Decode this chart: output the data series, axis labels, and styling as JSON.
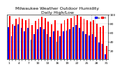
{
  "title": "Milwaukee Weather Outdoor Humidity",
  "subtitle": "Daily High/Low",
  "background_color": "#ffffff",
  "high_color": "#ff0000",
  "low_color": "#0000ff",
  "legend_high": "Hi",
  "legend_low": "Lo",
  "ylim": [
    0,
    100
  ],
  "yticks": [
    20,
    40,
    60,
    80,
    100
  ],
  "n_bars": 31,
  "highs": [
    97,
    78,
    90,
    94,
    91,
    88,
    90,
    76,
    86,
    90,
    95,
    92,
    85,
    79,
    88,
    65,
    80,
    88,
    90,
    93,
    97,
    98,
    96,
    90,
    88,
    85,
    88,
    80,
    72,
    75,
    30
  ],
  "lows": [
    72,
    52,
    75,
    78,
    70,
    62,
    70,
    44,
    57,
    67,
    72,
    67,
    57,
    50,
    62,
    40,
    52,
    62,
    64,
    67,
    72,
    77,
    70,
    62,
    57,
    54,
    57,
    50,
    37,
    34,
    12
  ],
  "xlabels": [
    "1",
    "",
    "",
    "4",
    "",
    "",
    "7",
    "",
    "",
    "10",
    "",
    "",
    "13",
    "",
    "",
    "16",
    "",
    "",
    "19",
    "",
    "",
    "22",
    "",
    "",
    "25",
    "",
    "",
    "28",
    "",
    "",
    "31"
  ],
  "dotted_vline_x": 25.5,
  "title_fontsize": 4.5,
  "tick_fontsize": 3.2,
  "bar_width": 0.38
}
